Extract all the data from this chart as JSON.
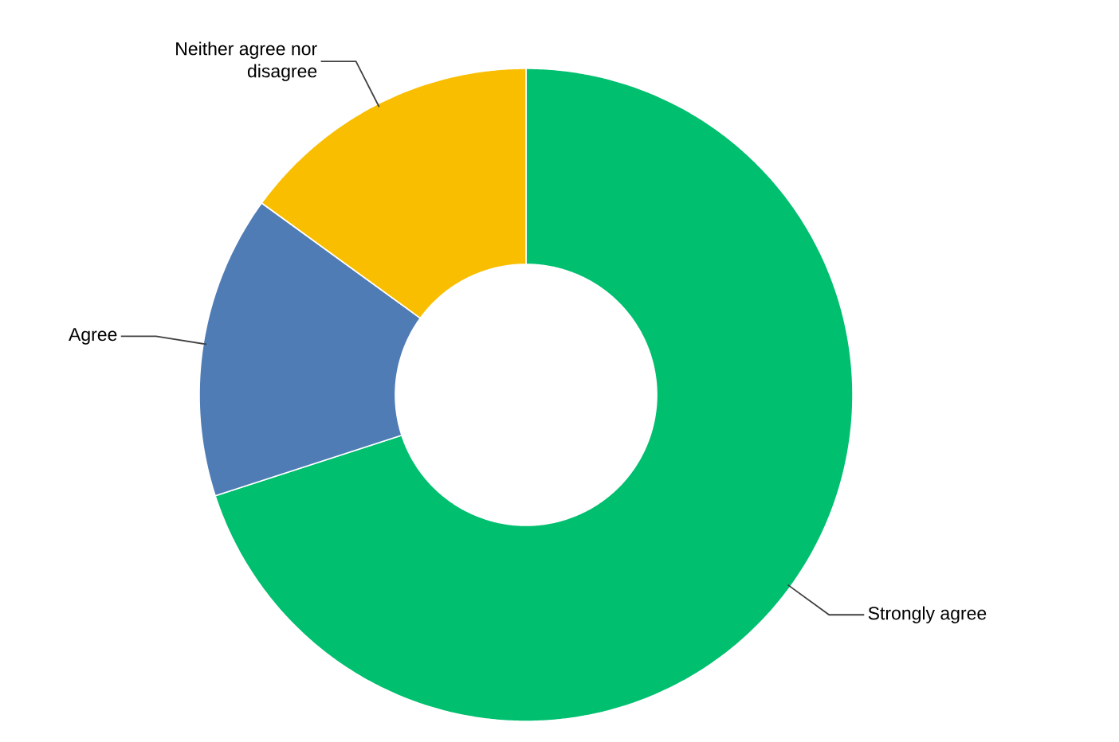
{
  "chart_data": {
    "type": "donut",
    "categories": [
      "Strongly agree",
      "Agree",
      "Neither agree nor disagree"
    ],
    "values": [
      70,
      15,
      15
    ],
    "colors": [
      "#00bf6f",
      "#507cb6",
      "#f9be00"
    ]
  }
}
